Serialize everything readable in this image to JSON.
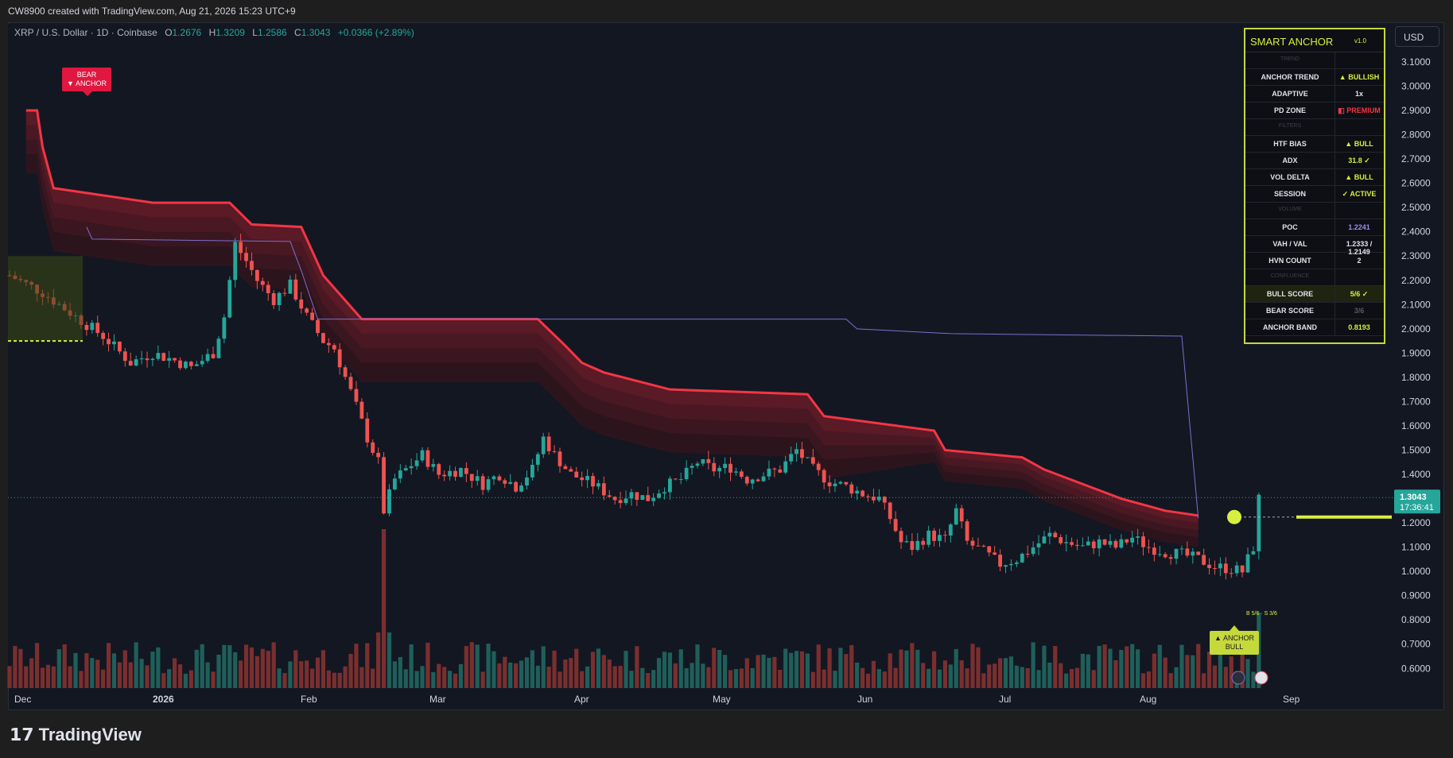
{
  "header": {
    "title": "CW8900 created with TradingView.com, Aug 21, 2026 15:23 UTC+9"
  },
  "legend": {
    "symbol": "XRP / U.S. Dollar · 1D · Coinbase",
    "o_label": "O",
    "o": "1.2676",
    "h_label": "H",
    "h": "1.3209",
    "l_label": "L",
    "l": "1.2586",
    "c_label": "C",
    "c": "1.3043",
    "change": "+0.0366 (+2.89%)"
  },
  "currency_button": "USD",
  "price_tag": {
    "price": "1.3043",
    "countdown": "17:36:41"
  },
  "labels": {
    "bear_anchor_1": "BEAR",
    "bear_anchor_2": "▼ ANCHOR",
    "anchor_bull_1": "▲ ANCHOR",
    "anchor_bull_2": "BULL",
    "score_note": "B 5/6 · S 3/6"
  },
  "panel": {
    "title": "SMART ANCHOR",
    "version": "v1.0",
    "rows": [
      {
        "label": "TREND",
        "value": "",
        "section": true
      },
      {
        "label": "ANCHOR TREND",
        "value": "▲ BULLISH",
        "color": "#d9ef3f"
      },
      {
        "label": "ADAPTIVE",
        "value": "1x",
        "color": "#e0e3eb"
      },
      {
        "label": "PD ZONE",
        "value": "◧ PREMIUM",
        "color": "#f23645"
      },
      {
        "label": "FILTERS",
        "value": "",
        "section": true
      },
      {
        "label": "HTF BIAS",
        "value": "▲ BULL",
        "color": "#d9ef3f"
      },
      {
        "label": "ADX",
        "value": "31.8 ✓",
        "color": "#d9ef3f"
      },
      {
        "label": "VOL DELTA",
        "value": "▲ BULL",
        "color": "#d9ef3f"
      },
      {
        "label": "SESSION",
        "value": "✓ ACTIVE",
        "color": "#d9ef3f"
      },
      {
        "label": "VOLUME",
        "value": "",
        "section": true
      },
      {
        "label": "POC",
        "value": "1.2241",
        "color": "#9c8cf0"
      },
      {
        "label": "VAH / VAL",
        "value": "1.2333 / 1.2149",
        "color": "#e0e3eb"
      },
      {
        "label": "HVN COUNT",
        "value": "2",
        "color": "#e0e3eb"
      },
      {
        "label": "CONFLUENCE",
        "value": "",
        "section": true
      },
      {
        "label": "BULL SCORE",
        "value": "5/6 ✓",
        "color": "#d9ef3f",
        "highlight": true
      },
      {
        "label": "BEAR SCORE",
        "value": "3/6",
        "color": "#555a66"
      },
      {
        "label": "ANCHOR BAND",
        "value": "0.8193",
        "color": "#d9ef3f"
      }
    ]
  },
  "footer": {
    "brand": "TradingView"
  },
  "colors": {
    "up": "#26a69a",
    "down": "#ef5350",
    "band": "#f23645",
    "accent": "#d9ef3f",
    "poc_line": "#7b6fd0"
  },
  "chart_data": {
    "type": "candlestick",
    "symbol": "XRP / U.S. Dollar",
    "interval": "1D",
    "x_ticks": [
      "Dec",
      "2026",
      "Feb",
      "Mar",
      "Apr",
      "May",
      "Jun",
      "Jul",
      "Aug",
      "Sep"
    ],
    "y_ticks": [
      "3.1000",
      "3.0000",
      "2.9000",
      "2.8000",
      "2.7000",
      "2.6000",
      "2.5000",
      "2.4000",
      "2.3000",
      "2.2000",
      "2.1000",
      "2.0000",
      "1.9000",
      "1.8000",
      "1.7000",
      "1.6000",
      "1.5000",
      "1.4000",
      "1.3000",
      "1.2000",
      "1.1000",
      "1.0000",
      "0.9000",
      "0.8000",
      "0.7000",
      "0.6000"
    ],
    "ylim": [
      0.55,
      3.18
    ],
    "close_path": [
      [
        0,
        2.22
      ],
      [
        6,
        2.15
      ],
      [
        12,
        2.05
      ],
      [
        17,
        1.97
      ],
      [
        22,
        1.86
      ],
      [
        26,
        1.9
      ],
      [
        30,
        1.87
      ],
      [
        33,
        1.84
      ],
      [
        37,
        1.9
      ],
      [
        39,
        2.05
      ],
      [
        41,
        2.35
      ],
      [
        43,
        2.28
      ],
      [
        45,
        2.2
      ],
      [
        48,
        2.12
      ],
      [
        51,
        2.18
      ],
      [
        54,
        2.05
      ],
      [
        57,
        1.95
      ],
      [
        59,
        1.92
      ],
      [
        61,
        1.8
      ],
      [
        63,
        1.68
      ],
      [
        65,
        1.55
      ],
      [
        67,
        1.45
      ],
      [
        68,
        1.25
      ],
      [
        70,
        1.38
      ],
      [
        72,
        1.42
      ],
      [
        75,
        1.48
      ],
      [
        78,
        1.4
      ],
      [
        82,
        1.42
      ],
      [
        86,
        1.36
      ],
      [
        89,
        1.4
      ],
      [
        92,
        1.35
      ],
      [
        95,
        1.42
      ],
      [
        97,
        1.55
      ],
      [
        99,
        1.48
      ],
      [
        102,
        1.4
      ],
      [
        106,
        1.36
      ],
      [
        110,
        1.3
      ],
      [
        113,
        1.32
      ],
      [
        116,
        1.3
      ],
      [
        119,
        1.35
      ],
      [
        122,
        1.38
      ],
      [
        125,
        1.45
      ],
      [
        128,
        1.42
      ],
      [
        131,
        1.43
      ],
      [
        134,
        1.38
      ],
      [
        137,
        1.4
      ],
      [
        140,
        1.42
      ],
      [
        143,
        1.5
      ],
      [
        146,
        1.42
      ],
      [
        149,
        1.37
      ],
      [
        152,
        1.35
      ],
      [
        155,
        1.32
      ],
      [
        158,
        1.3
      ],
      [
        160,
        1.22
      ],
      [
        162,
        1.12
      ],
      [
        164,
        1.1
      ],
      [
        167,
        1.15
      ],
      [
        170,
        1.13
      ],
      [
        172,
        1.25
      ],
      [
        174,
        1.12
      ],
      [
        177,
        1.08
      ],
      [
        180,
        1.03
      ],
      [
        183,
        1.05
      ],
      [
        186,
        1.1
      ],
      [
        189,
        1.15
      ],
      [
        192,
        1.12
      ],
      [
        195,
        1.1
      ],
      [
        198,
        1.12
      ],
      [
        201,
        1.1
      ],
      [
        204,
        1.14
      ],
      [
        207,
        1.1
      ],
      [
        210,
        1.08
      ],
      [
        213,
        1.07
      ],
      [
        216,
        1.05
      ],
      [
        219,
        1.02
      ],
      [
        222,
        1.01
      ],
      [
        224,
        1.0
      ],
      [
        226,
        1.1
      ],
      [
        227,
        1.3
      ]
    ],
    "volume_rel": "bars along bottom, spike near Feb 6",
    "anchor_band_upper_steps": [
      [
        3,
        2.9
      ],
      [
        5,
        2.9
      ],
      [
        6,
        2.75
      ],
      [
        8,
        2.58
      ],
      [
        26,
        2.52
      ],
      [
        40,
        2.52
      ],
      [
        44,
        2.43
      ],
      [
        53,
        2.42
      ],
      [
        57,
        2.22
      ],
      [
        64,
        2.04
      ],
      [
        96,
        2.04
      ],
      [
        101,
        1.93
      ],
      [
        104,
        1.86
      ],
      [
        108,
        1.82
      ],
      [
        120,
        1.75
      ],
      [
        145,
        1.73
      ],
      [
        148,
        1.64
      ],
      [
        168,
        1.58
      ],
      [
        170,
        1.5
      ],
      [
        184,
        1.47
      ],
      [
        188,
        1.42
      ],
      [
        195,
        1.36
      ],
      [
        202,
        1.3
      ],
      [
        210,
        1.25
      ],
      [
        216,
        1.23
      ]
    ],
    "poc_line_steps": [
      [
        14,
        2.42
      ],
      [
        15,
        2.37
      ],
      [
        51,
        2.36
      ],
      [
        53,
        2.24
      ],
      [
        56,
        2.04
      ],
      [
        152,
        2.04
      ],
      [
        154,
        2.0
      ],
      [
        171,
        1.98
      ],
      [
        213,
        1.97
      ],
      [
        216,
        1.22
      ]
    ],
    "last_price": 1.3043,
    "poc": 1.2241
  }
}
